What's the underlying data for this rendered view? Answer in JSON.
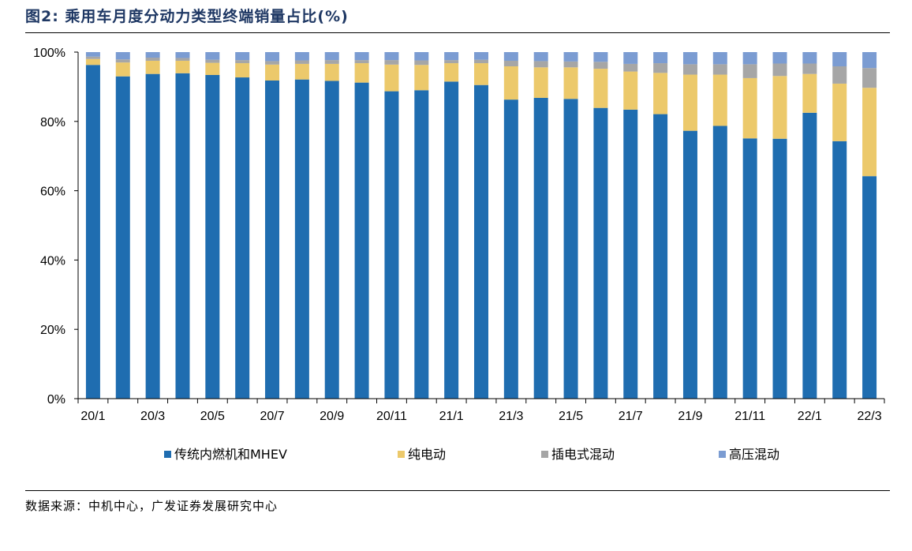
{
  "figure": {
    "title": "图2: 乘用车月度分动力类型终端销量占比(%)",
    "source": "数据来源：中机中心，广发证券发展研究中心"
  },
  "chart_data": {
    "type": "bar",
    "stacked": true,
    "title": "",
    "xlabel": "",
    "ylabel": "",
    "ylim": [
      0,
      100
    ],
    "y_unit": "%",
    "y_ticks": [
      "0%",
      "20%",
      "40%",
      "60%",
      "80%",
      "100%"
    ],
    "grid": false,
    "legend_position": "bottom",
    "categories": [
      "20/1",
      "20/2",
      "20/3",
      "20/4",
      "20/5",
      "20/6",
      "20/7",
      "20/8",
      "20/9",
      "20/10",
      "20/11",
      "20/12",
      "21/1",
      "21/2",
      "21/3",
      "21/4",
      "21/5",
      "21/6",
      "21/7",
      "21/8",
      "21/9",
      "21/10",
      "21/11",
      "21/12",
      "22/1",
      "22/2",
      "22/3"
    ],
    "x_tick_labels": [
      "20/1",
      "",
      "20/3",
      "",
      "20/5",
      "",
      "20/7",
      "",
      "20/9",
      "",
      "20/11",
      "",
      "21/1",
      "",
      "21/3",
      "",
      "21/5",
      "",
      "21/7",
      "",
      "21/9",
      "",
      "21/11",
      "",
      "22/1",
      "",
      "22/3"
    ],
    "series": [
      {
        "name": "传统内燃机和MHEV",
        "color": "#1f6db0",
        "values": [
          96.3,
          93.0,
          93.7,
          93.9,
          93.4,
          92.7,
          91.8,
          92.1,
          91.7,
          91.2,
          88.7,
          89.0,
          91.5,
          90.5,
          86.3,
          86.8,
          86.5,
          83.9,
          83.4,
          82.1,
          77.3,
          78.7,
          75.1,
          75.0,
          82.5,
          74.3,
          64.2
        ]
      },
      {
        "name": "纯电动",
        "color": "#ecc96b",
        "values": [
          1.7,
          4.0,
          3.8,
          3.6,
          3.5,
          4.1,
          4.6,
          4.5,
          4.9,
          5.6,
          7.7,
          7.3,
          5.3,
          6.3,
          9.6,
          8.8,
          9.1,
          11.3,
          11.0,
          11.9,
          16.2,
          14.8,
          17.4,
          18.1,
          11.2,
          16.6,
          25.5
        ]
      },
      {
        "name": "插电式混动",
        "color": "#a6a6a6",
        "values": [
          0.7,
          0.9,
          0.9,
          0.8,
          0.9,
          0.9,
          1.0,
          1.0,
          1.1,
          0.9,
          1.3,
          1.3,
          0.9,
          1.0,
          1.6,
          1.8,
          1.7,
          2.0,
          2.2,
          2.8,
          3.0,
          3.0,
          4.0,
          3.6,
          3.0,
          5.0,
          5.7
        ]
      },
      {
        "name": "高压混动",
        "color": "#7b9cd2",
        "values": [
          1.3,
          2.1,
          1.6,
          1.7,
          2.2,
          2.3,
          2.6,
          2.4,
          2.3,
          2.3,
          2.3,
          2.4,
          2.3,
          2.2,
          2.5,
          2.6,
          2.7,
          2.8,
          3.4,
          3.2,
          3.5,
          3.5,
          3.5,
          3.3,
          3.3,
          4.1,
          4.6
        ]
      }
    ]
  }
}
